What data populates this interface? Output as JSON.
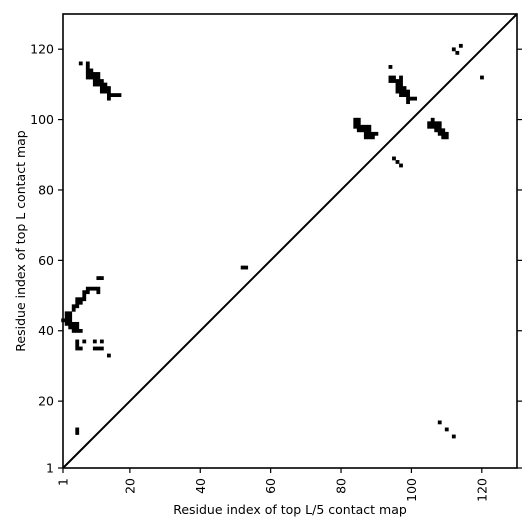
{
  "chart_data": {
    "type": "heatmap",
    "xlabel": "Residue index of top L/5 contact map",
    "ylabel": "Residue index of top L contact map",
    "xlim": [
      1,
      130
    ],
    "ylim": [
      1,
      130
    ],
    "x_ticks": [
      1,
      20,
      40,
      60,
      80,
      100,
      120
    ],
    "y_ticks": [
      1,
      20,
      40,
      60,
      80,
      100,
      120
    ],
    "x_tick_rotation_deg": -90,
    "diagonal_line": true,
    "grid": false,
    "cell_color": "#000000",
    "line_color": "#000000",
    "background_color": "#ffffff",
    "upper_triangle_contacts": [
      [
        6,
        116
      ],
      [
        8,
        116
      ],
      [
        8,
        115
      ],
      [
        8,
        114
      ],
      [
        8,
        113
      ],
      [
        9,
        114
      ],
      [
        9,
        113
      ],
      [
        10,
        113
      ],
      [
        11,
        113
      ],
      [
        8,
        112
      ],
      [
        9,
        112
      ],
      [
        10,
        112
      ],
      [
        11,
        112
      ],
      [
        10,
        111
      ],
      [
        11,
        111
      ],
      [
        12,
        111
      ],
      [
        10,
        110
      ],
      [
        11,
        110
      ],
      [
        12,
        110
      ],
      [
        13,
        110
      ],
      [
        12,
        109
      ],
      [
        13,
        109
      ],
      [
        14,
        109
      ],
      [
        12,
        108
      ],
      [
        13,
        108
      ],
      [
        14,
        108
      ],
      [
        14,
        107
      ],
      [
        15,
        107
      ],
      [
        16,
        107
      ],
      [
        17,
        107
      ],
      [
        14,
        106
      ],
      [
        84,
        100
      ],
      [
        85,
        100
      ],
      [
        84,
        99
      ],
      [
        85,
        99
      ],
      [
        84,
        98
      ],
      [
        85,
        98
      ],
      [
        86,
        98
      ],
      [
        87,
        98
      ],
      [
        88,
        98
      ],
      [
        85,
        97
      ],
      [
        86,
        97
      ],
      [
        87,
        97
      ],
      [
        88,
        97
      ],
      [
        87,
        96
      ],
      [
        88,
        96
      ],
      [
        89,
        96
      ],
      [
        90,
        96
      ],
      [
        87,
        95
      ],
      [
        88,
        95
      ],
      [
        89,
        95
      ],
      [
        94,
        115
      ],
      [
        94,
        112
      ],
      [
        95,
        112
      ],
      [
        97,
        112
      ],
      [
        94,
        111
      ],
      [
        95,
        111
      ],
      [
        96,
        111
      ],
      [
        97,
        111
      ],
      [
        96,
        110
      ],
      [
        97,
        110
      ],
      [
        96,
        109
      ],
      [
        97,
        109
      ],
      [
        98,
        109
      ],
      [
        96,
        108
      ],
      [
        97,
        108
      ],
      [
        98,
        108
      ],
      [
        99,
        108
      ],
      [
        97,
        107
      ],
      [
        98,
        107
      ],
      [
        99,
        107
      ],
      [
        99,
        106
      ],
      [
        100,
        106
      ],
      [
        101,
        106
      ],
      [
        99,
        105
      ],
      [
        95,
        89
      ],
      [
        96,
        88
      ],
      [
        97,
        87
      ],
      [
        106,
        100
      ],
      [
        105,
        99
      ],
      [
        106,
        99
      ],
      [
        107,
        99
      ],
      [
        108,
        99
      ],
      [
        105,
        98
      ],
      [
        106,
        98
      ],
      [
        107,
        98
      ],
      [
        108,
        98
      ],
      [
        107,
        97
      ],
      [
        108,
        97
      ],
      [
        109,
        97
      ],
      [
        108,
        96
      ],
      [
        109,
        96
      ],
      [
        110,
        96
      ],
      [
        109,
        95
      ],
      [
        110,
        95
      ],
      [
        112,
        120
      ],
      [
        113,
        119
      ],
      [
        114,
        121
      ],
      [
        120,
        112
      ]
    ],
    "lower_triangle_contacts": [
      [
        52,
        58
      ],
      [
        53,
        58
      ],
      [
        11,
        55
      ],
      [
        12,
        55
      ],
      [
        8,
        52
      ],
      [
        9,
        52
      ],
      [
        10,
        52
      ],
      [
        11,
        52
      ],
      [
        11,
        51
      ],
      [
        7,
        51
      ],
      [
        8,
        51
      ],
      [
        7,
        50
      ],
      [
        5,
        49
      ],
      [
        6,
        49
      ],
      [
        7,
        49
      ],
      [
        5,
        48
      ],
      [
        6,
        48
      ],
      [
        4,
        47
      ],
      [
        5,
        47
      ],
      [
        4,
        46
      ],
      [
        2,
        45
      ],
      [
        3,
        45
      ],
      [
        2,
        44
      ],
      [
        3,
        44
      ],
      [
        1,
        43
      ],
      [
        2,
        43
      ],
      [
        3,
        43
      ],
      [
        2,
        42
      ],
      [
        3,
        42
      ],
      [
        4,
        42
      ],
      [
        5,
        42
      ],
      [
        3,
        41
      ],
      [
        4,
        41
      ],
      [
        5,
        41
      ],
      [
        4,
        40
      ],
      [
        5,
        40
      ],
      [
        6,
        40
      ],
      [
        7,
        37
      ],
      [
        10,
        37
      ],
      [
        12,
        37
      ],
      [
        5,
        37
      ],
      [
        5,
        36
      ],
      [
        5,
        35
      ],
      [
        6,
        35
      ],
      [
        10,
        35
      ],
      [
        11,
        35
      ],
      [
        12,
        35
      ],
      [
        14,
        33
      ],
      [
        5,
        12
      ],
      [
        5,
        11
      ],
      [
        108,
        14
      ],
      [
        110,
        12
      ],
      [
        112,
        10
      ]
    ]
  }
}
